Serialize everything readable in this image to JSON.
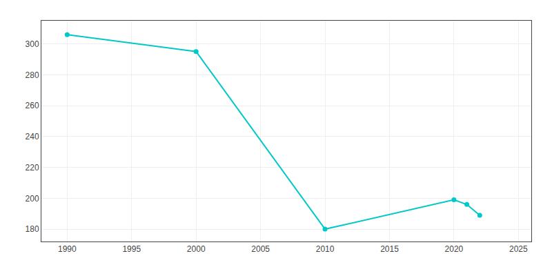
{
  "chart_data": {
    "type": "line",
    "x": [
      1990,
      2000,
      2010,
      2020,
      2021,
      2022
    ],
    "values": [
      306,
      295,
      180,
      199,
      196,
      189
    ],
    "color": "#00c8c8",
    "marker": "circle",
    "line_style": "solid",
    "xlim": [
      1988,
      2026
    ],
    "xticks": [
      1990,
      1995,
      2000,
      2005,
      2010,
      2015,
      2020,
      2025
    ],
    "ylim": [
      172,
      315
    ],
    "yticks": [
      180,
      200,
      220,
      240,
      260,
      280,
      300
    ],
    "grid": true
  }
}
